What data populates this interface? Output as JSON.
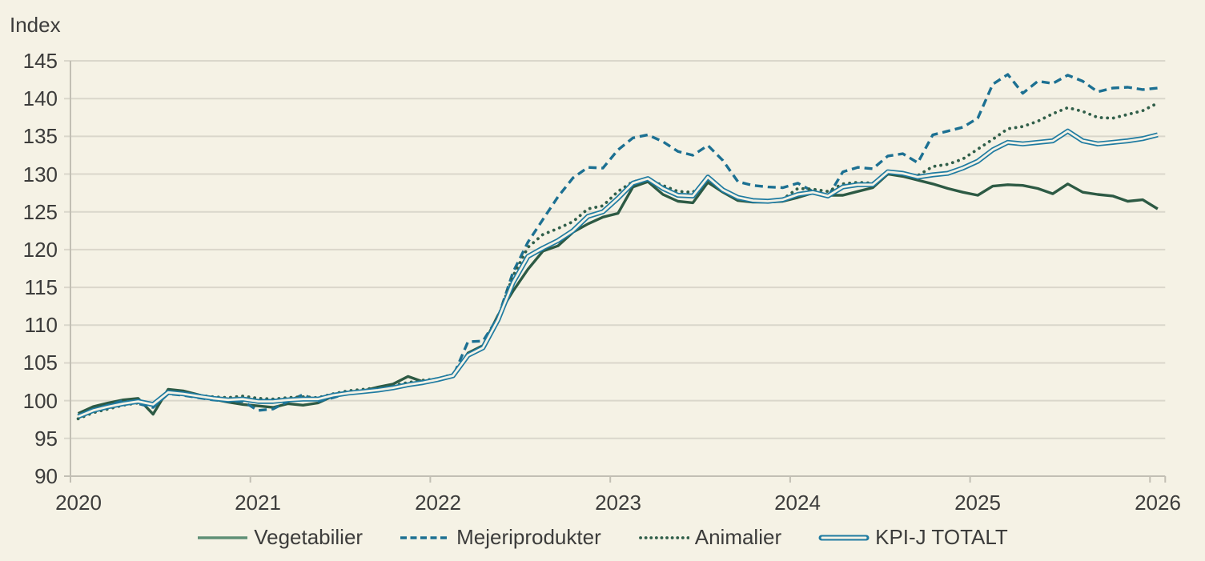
{
  "title": "Index",
  "colors": {
    "background": "#f5f2e5",
    "grid": "#dad7cb",
    "axis": "#c2bfb4",
    "text": "#3c3c3b"
  },
  "chart_data": {
    "type": "line",
    "title": "Index",
    "xlabel": "",
    "ylabel": "Index",
    "ylim": [
      90,
      145
    ],
    "y_ticks": [
      90,
      95,
      100,
      105,
      110,
      115,
      120,
      125,
      130,
      135,
      140,
      145
    ],
    "x_tick_labels": [
      "2020",
      "2021",
      "2022",
      "2023",
      "2024",
      "2025",
      "2026"
    ],
    "x_start": "2020-01",
    "x_step": "month",
    "points_per_series": 73,
    "grid": "horizontal",
    "legend_position": "bottom",
    "series": [
      {
        "name": "Vegetabilier",
        "style": "solid",
        "color": "#2d5a44",
        "legend_color": "#5f9076",
        "values": [
          98.3,
          99.2,
          99.7,
          100.1,
          100.3,
          98.2,
          101.5,
          101.3,
          100.8,
          100.2,
          99.8,
          99.5,
          99.3,
          99.1,
          99.6,
          99.4,
          99.7,
          100.6,
          100.9,
          101.3,
          101.8,
          102.2,
          103.2,
          102.5,
          102.9,
          103.3,
          106.3,
          107.3,
          111.3,
          114.5,
          117.4,
          119.8,
          120.5,
          122.3,
          123.4,
          124.3,
          124.8,
          128.3,
          129.0,
          127.3,
          126.4,
          126.2,
          128.9,
          127.6,
          126.5,
          126.3,
          126.3,
          126.4,
          126.9,
          127.5,
          127.2,
          127.2,
          127.7,
          128.2,
          130.0,
          129.7,
          129.2,
          128.7,
          128.1,
          127.6,
          127.2,
          128.4,
          128.6,
          128.5,
          128.1,
          127.4,
          128.7,
          127.6,
          127.3,
          127.1,
          126.4,
          126.6,
          125.4
        ]
      },
      {
        "name": "Mejeriprodukter",
        "style": "dashed",
        "color": "#1c7092",
        "values": [
          98.0,
          98.8,
          99.4,
          100.0,
          99.6,
          99.1,
          100.9,
          100.7,
          100.4,
          100.1,
          99.9,
          99.9,
          98.7,
          98.9,
          99.9,
          100.8,
          99.9,
          100.4,
          101.0,
          101.2,
          101.4,
          101.7,
          102.0,
          102.4,
          102.8,
          103.2,
          107.8,
          107.9,
          111.0,
          117.0,
          121.0,
          124.0,
          127.0,
          129.5,
          130.9,
          130.8,
          133.2,
          134.8,
          135.2,
          134.3,
          133.0,
          132.5,
          133.8,
          131.8,
          129.0,
          128.5,
          128.3,
          128.2,
          128.8,
          127.7,
          127.0,
          130.3,
          130.9,
          130.7,
          132.4,
          132.7,
          131.5,
          135.2,
          135.7,
          136.2,
          137.4,
          141.9,
          143.2,
          140.7,
          142.3,
          142.0,
          143.1,
          142.3,
          140.9,
          141.4,
          141.5,
          141.2,
          141.4
        ]
      },
      {
        "name": "Animalier",
        "style": "dotted",
        "color": "#315f4a",
        "values": [
          97.6,
          98.4,
          98.9,
          99.4,
          99.7,
          99.6,
          101.0,
          100.9,
          100.7,
          100.5,
          100.4,
          100.6,
          100.3,
          100.2,
          100.4,
          100.5,
          100.4,
          100.9,
          101.3,
          101.5,
          101.7,
          102.0,
          102.4,
          102.7,
          102.9,
          103.5,
          106.2,
          107.2,
          111.0,
          116.5,
          120.3,
          122.0,
          122.8,
          123.7,
          125.4,
          125.8,
          127.7,
          129.0,
          129.3,
          128.5,
          127.7,
          127.6,
          129.2,
          128.0,
          126.9,
          126.5,
          126.4,
          126.7,
          128.1,
          128.0,
          127.7,
          128.7,
          128.9,
          128.8,
          130.2,
          130.0,
          129.8,
          131.0,
          131.3,
          132.0,
          133.3,
          134.6,
          136.0,
          136.3,
          137.0,
          138.0,
          138.8,
          138.3,
          137.5,
          137.4,
          137.9,
          138.4,
          139.4
        ]
      },
      {
        "name": "KPI-J TOTALT",
        "style": "double",
        "color": "#1f7ba1",
        "values": [
          97.9,
          98.7,
          99.2,
          99.6,
          99.9,
          99.5,
          101.1,
          100.9,
          100.6,
          100.3,
          100.1,
          100.2,
          99.9,
          99.9,
          100.1,
          100.2,
          100.2,
          100.7,
          101.0,
          101.2,
          101.4,
          101.7,
          102.1,
          102.4,
          102.8,
          103.3,
          106.0,
          107.0,
          110.7,
          115.6,
          119.1,
          120.2,
          121.2,
          122.5,
          124.4,
          125.0,
          126.8,
          128.8,
          129.4,
          128.1,
          127.2,
          127.1,
          129.6,
          127.9,
          126.9,
          126.5,
          126.4,
          126.6,
          127.3,
          127.6,
          127.1,
          128.3,
          128.6,
          128.6,
          130.3,
          130.1,
          129.6,
          129.9,
          130.1,
          130.8,
          131.7,
          133.2,
          134.2,
          134.0,
          134.2,
          134.4,
          135.7,
          134.4,
          134.0,
          134.2,
          134.4,
          134.7,
          135.2
        ]
      }
    ]
  }
}
